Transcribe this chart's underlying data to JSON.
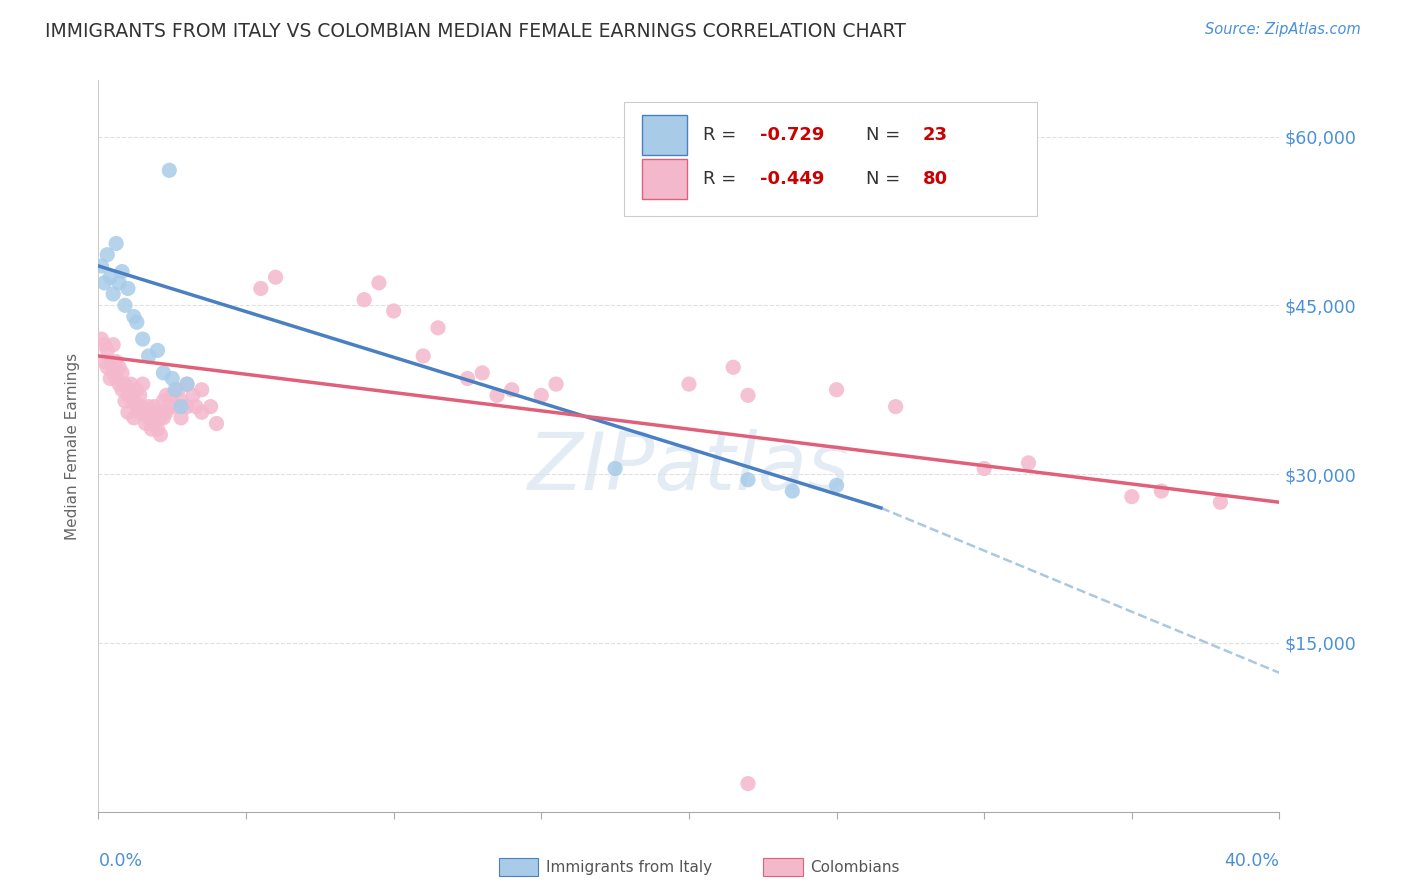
{
  "title": "IMMIGRANTS FROM ITALY VS COLOMBIAN MEDIAN FEMALE EARNINGS CORRELATION CHART",
  "source": "Source: ZipAtlas.com",
  "ylabel": "Median Female Earnings",
  "yticks": [
    0,
    15000,
    30000,
    45000,
    60000
  ],
  "ytick_labels": [
    "",
    "$15,000",
    "$30,000",
    "$45,000",
    "$60,000"
  ],
  "xlim": [
    0.0,
    0.4
  ],
  "ylim": [
    0,
    65000
  ],
  "italy_color": "#a8cce8",
  "colombia_color": "#f4b8cc",
  "italy_line_color": "#4a7fc1",
  "colombia_line_color": "#e0607a",
  "dashed_line_color": "#aac8e0",
  "watermark": "ZIPatlas",
  "italy_scatter": [
    [
      0.001,
      48500
    ],
    [
      0.002,
      47000
    ],
    [
      0.003,
      49500
    ],
    [
      0.004,
      47500
    ],
    [
      0.005,
      46000
    ],
    [
      0.006,
      50500
    ],
    [
      0.007,
      47000
    ],
    [
      0.008,
      48000
    ],
    [
      0.009,
      45000
    ],
    [
      0.01,
      46500
    ],
    [
      0.012,
      44000
    ],
    [
      0.013,
      43500
    ],
    [
      0.015,
      42000
    ],
    [
      0.017,
      40500
    ],
    [
      0.02,
      41000
    ],
    [
      0.022,
      39000
    ],
    [
      0.024,
      57000
    ],
    [
      0.025,
      38500
    ],
    [
      0.026,
      37500
    ],
    [
      0.028,
      36000
    ],
    [
      0.03,
      38000
    ],
    [
      0.22,
      29500
    ],
    [
      0.235,
      28500
    ],
    [
      0.25,
      29000
    ],
    [
      0.175,
      30500
    ]
  ],
  "colombia_scatter": [
    [
      0.001,
      42000
    ],
    [
      0.002,
      41500
    ],
    [
      0.002,
      40000
    ],
    [
      0.003,
      41000
    ],
    [
      0.003,
      39500
    ],
    [
      0.004,
      40000
    ],
    [
      0.004,
      38500
    ],
    [
      0.005,
      41500
    ],
    [
      0.005,
      39000
    ],
    [
      0.006,
      40000
    ],
    [
      0.006,
      38500
    ],
    [
      0.007,
      39500
    ],
    [
      0.007,
      38000
    ],
    [
      0.008,
      39000
    ],
    [
      0.008,
      37500
    ],
    [
      0.009,
      38000
    ],
    [
      0.009,
      36500
    ],
    [
      0.01,
      37000
    ],
    [
      0.01,
      35500
    ],
    [
      0.011,
      38000
    ],
    [
      0.011,
      37000
    ],
    [
      0.012,
      36500
    ],
    [
      0.012,
      35000
    ],
    [
      0.013,
      37500
    ],
    [
      0.013,
      36000
    ],
    [
      0.014,
      37000
    ],
    [
      0.014,
      35500
    ],
    [
      0.015,
      38000
    ],
    [
      0.015,
      36000
    ],
    [
      0.016,
      35500
    ],
    [
      0.016,
      34500
    ],
    [
      0.017,
      36000
    ],
    [
      0.017,
      35000
    ],
    [
      0.018,
      35500
    ],
    [
      0.018,
      34000
    ],
    [
      0.019,
      36000
    ],
    [
      0.019,
      34500
    ],
    [
      0.02,
      35500
    ],
    [
      0.02,
      34000
    ],
    [
      0.021,
      35000
    ],
    [
      0.021,
      33500
    ],
    [
      0.022,
      36500
    ],
    [
      0.022,
      35000
    ],
    [
      0.023,
      37000
    ],
    [
      0.023,
      35500
    ],
    [
      0.024,
      36000
    ],
    [
      0.025,
      37000
    ],
    [
      0.026,
      36000
    ],
    [
      0.027,
      37500
    ],
    [
      0.028,
      36500
    ],
    [
      0.028,
      35000
    ],
    [
      0.03,
      38000
    ],
    [
      0.03,
      36000
    ],
    [
      0.032,
      37000
    ],
    [
      0.033,
      36000
    ],
    [
      0.035,
      37500
    ],
    [
      0.035,
      35500
    ],
    [
      0.038,
      36000
    ],
    [
      0.04,
      34500
    ],
    [
      0.055,
      46500
    ],
    [
      0.06,
      47500
    ],
    [
      0.09,
      45500
    ],
    [
      0.095,
      47000
    ],
    [
      0.1,
      44500
    ],
    [
      0.11,
      40500
    ],
    [
      0.115,
      43000
    ],
    [
      0.125,
      38500
    ],
    [
      0.13,
      39000
    ],
    [
      0.135,
      37000
    ],
    [
      0.14,
      37500
    ],
    [
      0.15,
      37000
    ],
    [
      0.155,
      38000
    ],
    [
      0.2,
      38000
    ],
    [
      0.215,
      39500
    ],
    [
      0.22,
      37000
    ],
    [
      0.25,
      37500
    ],
    [
      0.27,
      36000
    ],
    [
      0.3,
      30500
    ],
    [
      0.315,
      31000
    ],
    [
      0.35,
      28000
    ],
    [
      0.36,
      28500
    ],
    [
      0.22,
      2500
    ],
    [
      0.38,
      27500
    ]
  ],
  "italy_line_x": [
    0.0,
    0.265
  ],
  "italy_line_y": [
    48500,
    27000
  ],
  "colombia_line_x": [
    0.0,
    0.4
  ],
  "colombia_line_y": [
    40500,
    27500
  ],
  "dashed_line_x": [
    0.265,
    0.44
  ],
  "dashed_line_y": [
    27000,
    8000
  ]
}
